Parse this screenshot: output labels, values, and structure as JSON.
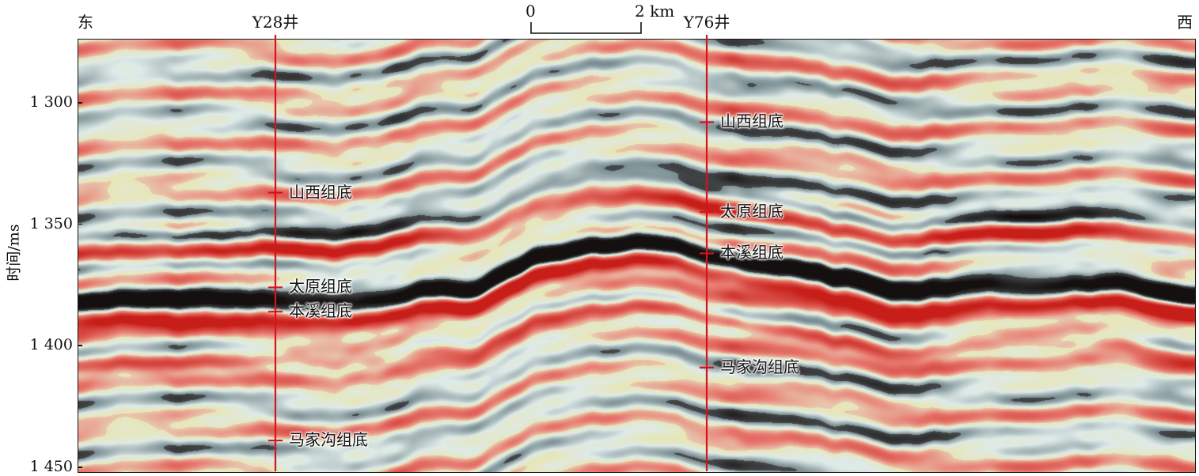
{
  "header": {
    "left_direction": "东",
    "right_direction": "西"
  },
  "scale_bar": {
    "start_label": "0",
    "end_label": "2 km"
  },
  "y_axis": {
    "title": "时间/ms",
    "ticks": [
      {
        "value": 1300,
        "label": "1 300"
      },
      {
        "value": 1350,
        "label": "1 350"
      },
      {
        "value": 1400,
        "label": "1 400"
      },
      {
        "value": 1450,
        "label": "1 450"
      }
    ],
    "range_ms": [
      1274,
      1452
    ]
  },
  "wells": [
    {
      "name": "Y28井",
      "horizons": [
        {
          "label": "山西组底",
          "time_ms": 1337
        },
        {
          "label": "太原组底",
          "time_ms": 1376
        },
        {
          "label": "本溪组底",
          "time_ms": 1386
        },
        {
          "label": "马家沟组底",
          "time_ms": 1439
        }
      ]
    },
    {
      "name": "Y76井",
      "horizons": [
        {
          "label": "山西组底",
          "time_ms": 1308
        },
        {
          "label": "太原组底",
          "time_ms": 1345
        },
        {
          "label": "本溪组底",
          "time_ms": 1362
        },
        {
          "label": "马家沟组底",
          "time_ms": 1409
        }
      ]
    }
  ],
  "colors": {
    "well_line": "#d4141a",
    "peak_red": "#c8231f",
    "trough_black": "#141010",
    "background_blue": "#dfecee",
    "background_yellow": "#e6eccb"
  }
}
